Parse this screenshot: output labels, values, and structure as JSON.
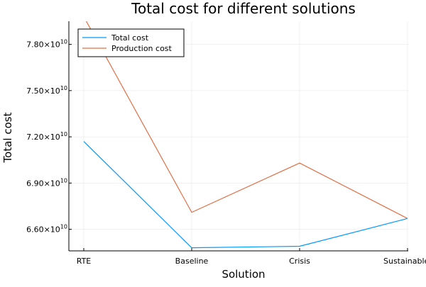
{
  "chart_data": {
    "type": "line",
    "title": "Total cost for different solutions",
    "xlabel": "Solution",
    "ylabel": "Total cost",
    "categories": [
      "RTE",
      "Baseline",
      "Crisis",
      "Sustainable"
    ],
    "y_ticks": [
      {
        "mantissa": "6.60",
        "exponent": "10",
        "value": 66000000000
      },
      {
        "mantissa": "6.90",
        "exponent": "10",
        "value": 69000000000
      },
      {
        "mantissa": "7.20",
        "exponent": "10",
        "value": 72000000000
      },
      {
        "mantissa": "7.50",
        "exponent": "10",
        "value": 75000000000
      },
      {
        "mantissa": "7.80",
        "exponent": "10",
        "value": 78000000000
      }
    ],
    "tick_multiplier_text": "×10",
    "ylim": [
      64600000000,
      79500000000
    ],
    "grid": true,
    "legend_position": "top-left",
    "series": [
      {
        "name": "Total cost",
        "color": "#009AFA",
        "values": [
          71700000000,
          64800000000,
          64900000000,
          66700000000
        ]
      },
      {
        "name": "Production cost",
        "color": "#E26F46",
        "values": [
          79800000000,
          67100000000,
          70300000000,
          66700000000
        ]
      }
    ]
  }
}
